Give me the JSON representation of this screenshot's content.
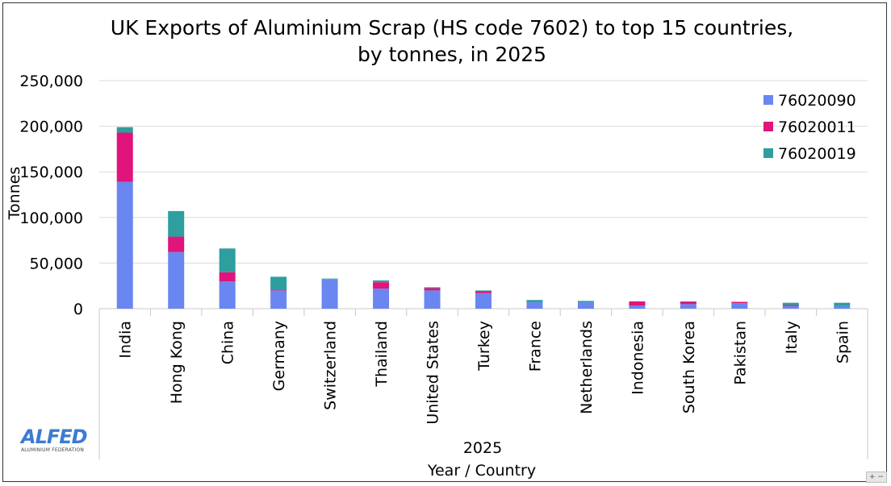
{
  "chart_data": {
    "type": "bar",
    "stacked": true,
    "title_lines": [
      "UK Exports of Aluminium Scrap (HS code 7602) to top 15 countries,",
      "by tonnes, in 2025"
    ],
    "xlabel": "Year / Country",
    "xgroup_label": "2025",
    "ylabel": "Tonnes",
    "ylim": [
      0,
      250000
    ],
    "yticks": [
      "0",
      "50,000",
      "100,000",
      "150,000",
      "200,000",
      "250,000"
    ],
    "ytick_values": [
      0,
      50000,
      100000,
      150000,
      200000,
      250000
    ],
    "grid": true,
    "legend_position": "top-right",
    "categories": [
      "India",
      "Hong Kong",
      "China",
      "Germany",
      "Switzerland",
      "Thailand",
      "United States",
      "Turkey",
      "France",
      "Netherlands",
      "Indonesia",
      "South Korea",
      "Pakistan",
      "Italy",
      "Spain"
    ],
    "series": [
      {
        "name": "76020090",
        "color": "#6a86f0",
        "values": [
          139000,
          62000,
          30000,
          20000,
          32500,
          22000,
          20000,
          17000,
          7000,
          7000,
          3500,
          5000,
          6000,
          3000,
          3000
        ]
      },
      {
        "name": "76020011",
        "color": "#e0147a",
        "values": [
          54000,
          17000,
          10000,
          1000,
          0,
          7000,
          2500,
          2000,
          0,
          0,
          4500,
          2500,
          1500,
          1000,
          0
        ]
      },
      {
        "name": "76020019",
        "color": "#2e9e9e",
        "values": [
          6000,
          28000,
          26000,
          14000,
          500,
          2000,
          1000,
          1000,
          2500,
          1500,
          0,
          500,
          0,
          2500,
          3500
        ]
      }
    ]
  },
  "logo": {
    "main": "ALFED",
    "sub": "ALUMINIUM FEDERATION"
  },
  "zoom_control": "+ −"
}
